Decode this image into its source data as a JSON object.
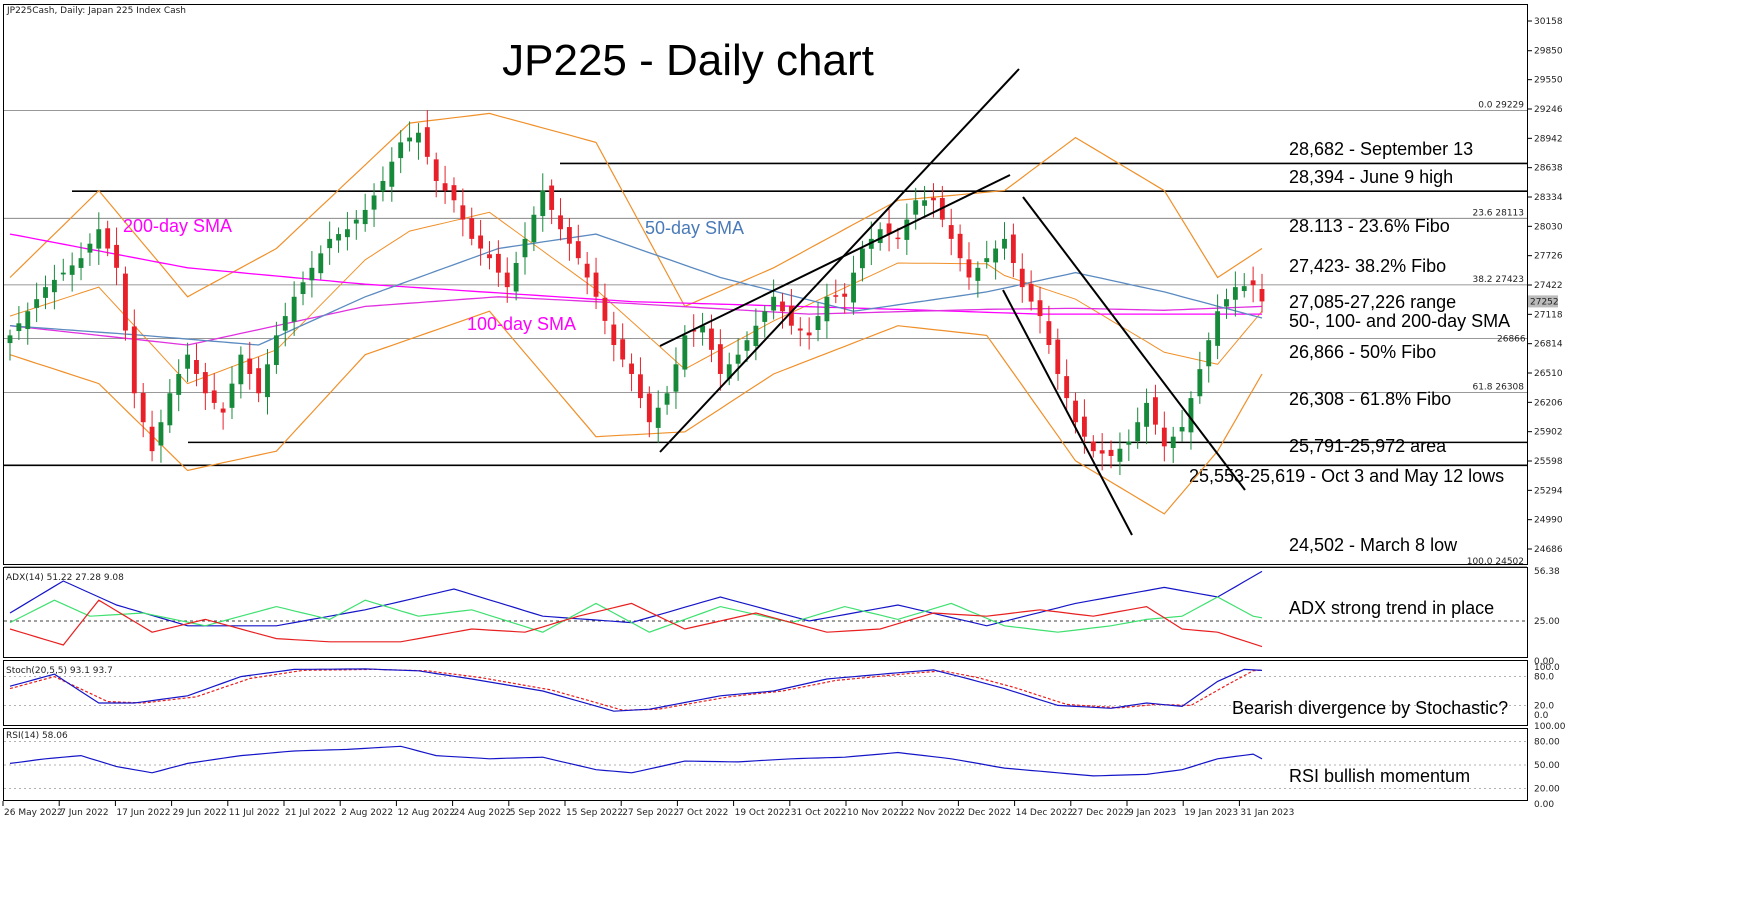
{
  "chart_data": {
    "type": "candlestick",
    "title": "JP225 - Daily chart",
    "header": "JP225Cash, Daily:  Japan 225 Index Cash",
    "y_ticks": [
      "30158",
      "29850",
      "29550",
      "29246",
      "28942",
      "28638",
      "28334",
      "28030",
      "27726",
      "27422",
      "27118",
      "26814",
      "26510",
      "26206",
      "25902",
      "25598",
      "25294",
      "24990",
      "24686"
    ],
    "ylim": [
      24450,
      30250
    ],
    "x_ticks": [
      "26 May 2022",
      "7 Jun 2022",
      "17 Jun 2022",
      "29 Jun 2022",
      "11 Jul 2022",
      "21 Jul 2022",
      "2 Aug 2022",
      "12 Aug 2022",
      "24 Aug 2022",
      "5 Sep 2022",
      "15 Sep 2022",
      "27 Sep 2022",
      "7 Oct 2022",
      "19 Oct 2022",
      "31 Oct 2022",
      "10 Nov 2022",
      "22 Nov 2022",
      "2 Dec 2022",
      "14 Dec 2022",
      "27 Dec 2022",
      "9 Jan 2023",
      "19 Jan 2023",
      "31 Jan 2023"
    ],
    "current_price": "27252",
    "hidden_price": "26866",
    "close_anchors": [
      [
        0,
        26900
      ],
      [
        4,
        27400
      ],
      [
        8,
        27700
      ],
      [
        10,
        28000
      ],
      [
        12,
        27600
      ],
      [
        14,
        26300
      ],
      [
        16,
        25700
      ],
      [
        18,
        26300
      ],
      [
        20,
        26700
      ],
      [
        22,
        26300
      ],
      [
        24,
        26100
      ],
      [
        26,
        26700
      ],
      [
        28,
        26300
      ],
      [
        30,
        26900
      ],
      [
        32,
        27300
      ],
      [
        34,
        27600
      ],
      [
        36,
        27900
      ],
      [
        38,
        28000
      ],
      [
        40,
        28200
      ],
      [
        42,
        28500
      ],
      [
        44,
        28900
      ],
      [
        46,
        29000
      ],
      [
        48,
        28500
      ],
      [
        50,
        28300
      ],
      [
        52,
        27900
      ],
      [
        54,
        27700
      ],
      [
        56,
        27400
      ],
      [
        58,
        27900
      ],
      [
        60,
        28400
      ],
      [
        62,
        28000
      ],
      [
        64,
        27700
      ],
      [
        66,
        27300
      ],
      [
        68,
        26800
      ],
      [
        70,
        26500
      ],
      [
        72,
        26000
      ],
      [
        74,
        26300
      ],
      [
        76,
        26900
      ],
      [
        78,
        27000
      ],
      [
        80,
        26500
      ],
      [
        82,
        26700
      ],
      [
        84,
        27000
      ],
      [
        86,
        27300
      ],
      [
        88,
        27000
      ],
      [
        90,
        26900
      ],
      [
        92,
        27300
      ],
      [
        94,
        27300
      ],
      [
        96,
        27800
      ],
      [
        98,
        28000
      ],
      [
        100,
        27900
      ],
      [
        102,
        28300
      ],
      [
        104,
        28300
      ],
      [
        106,
        27900
      ],
      [
        108,
        27500
      ],
      [
        110,
        27700
      ],
      [
        112,
        27900
      ],
      [
        114,
        27400
      ],
      [
        116,
        27100
      ],
      [
        118,
        26500
      ],
      [
        120,
        26000
      ],
      [
        122,
        25700
      ],
      [
        124,
        25650
      ],
      [
        126,
        25800
      ],
      [
        128,
        26200
      ],
      [
        130,
        25750
      ],
      [
        132,
        25950
      ],
      [
        134,
        26550
      ],
      [
        136,
        27150
      ],
      [
        138,
        27400
      ],
      [
        140,
        27420
      ],
      [
        141,
        27252
      ]
    ],
    "sma200": [
      [
        0,
        27950
      ],
      [
        20,
        27600
      ],
      [
        40,
        27430
      ],
      [
        70,
        27250
      ],
      [
        100,
        27170
      ],
      [
        116,
        27120
      ],
      [
        141,
        27120
      ]
    ],
    "sma100": [
      [
        0,
        27000
      ],
      [
        20,
        26800
      ],
      [
        40,
        27200
      ],
      [
        55,
        27300
      ],
      [
        70,
        27230
      ],
      [
        90,
        27120
      ],
      [
        110,
        27170
      ],
      [
        120,
        27180
      ],
      [
        130,
        27160
      ],
      [
        141,
        27200
      ]
    ],
    "sma50": [
      [
        0,
        27000
      ],
      [
        15,
        26900
      ],
      [
        28,
        26800
      ],
      [
        40,
        27300
      ],
      [
        55,
        27800
      ],
      [
        66,
        27950
      ],
      [
        80,
        27500
      ],
      [
        95,
        27150
      ],
      [
        110,
        27350
      ],
      [
        120,
        27550
      ],
      [
        130,
        27350
      ],
      [
        141,
        27080
      ]
    ],
    "bb_upper": [
      [
        0,
        27500
      ],
      [
        10,
        28400
      ],
      [
        20,
        27300
      ],
      [
        30,
        27800
      ],
      [
        45,
        29100
      ],
      [
        54,
        29200
      ],
      [
        66,
        28900
      ],
      [
        76,
        27200
      ],
      [
        86,
        27600
      ],
      [
        100,
        28300
      ],
      [
        112,
        28400
      ],
      [
        120,
        28950
      ],
      [
        130,
        28400
      ],
      [
        136,
        27500
      ],
      [
        141,
        27800
      ]
    ],
    "bb_lower": [
      [
        0,
        26700
      ],
      [
        10,
        26400
      ],
      [
        20,
        25500
      ],
      [
        30,
        25700
      ],
      [
        40,
        26700
      ],
      [
        54,
        27150
      ],
      [
        66,
        25850
      ],
      [
        76,
        25900
      ],
      [
        86,
        26500
      ],
      [
        100,
        27000
      ],
      [
        110,
        26900
      ],
      [
        120,
        25600
      ],
      [
        130,
        25050
      ],
      [
        136,
        25700
      ],
      [
        141,
        26500
      ]
    ],
    "levels": [
      {
        "value": 29229,
        "tag": "0.0 29229",
        "label": ""
      },
      {
        "value": 28682,
        "tag": "",
        "label": "28,682 - September 13"
      },
      {
        "value": 28394,
        "tag": "",
        "label": "28,394 - June 9 high"
      },
      {
        "value": 28113,
        "tag": "23.6 28113",
        "label": "28.113 - 23.6% Fibo"
      },
      {
        "value": 27423,
        "tag": "38.2 27423",
        "label": "27,423- 38.2% Fibo"
      },
      {
        "value": 26866,
        "tag": "",
        "label": "26,866 - 50% Fibo"
      },
      {
        "value": 26308,
        "tag": "61.8 26308",
        "label": "26,308 - 61.8% Fibo"
      },
      {
        "value": 25791,
        "tag": "",
        "label": "25,791-25,972 area"
      },
      {
        "value": 25553,
        "tag": "",
        "label": "25,553-25,619 - Oct 3 and May 12 lows"
      },
      {
        "value": 24502,
        "tag": "100.0 24502",
        "label": "24,502 - March 8 low"
      }
    ],
    "extra_labels": [
      "27,085-27,226 range",
      "50-, 100- and 200-day SMA"
    ],
    "sma_labels": {
      "sma200": "200-day SMA",
      "sma50": "50-day SMA",
      "sma100": "100-day SMA"
    },
    "adx": {
      "header": "ADX(14) 51.22 27.28 9.08",
      "ticks": [
        "56.38",
        "25.00",
        "0.00"
      ],
      "ylim": [
        0,
        60
      ],
      "level": 25,
      "adx": [
        [
          0,
          30
        ],
        [
          6,
          50
        ],
        [
          12,
          35
        ],
        [
          20,
          22
        ],
        [
          30,
          22
        ],
        [
          40,
          32
        ],
        [
          50,
          45
        ],
        [
          60,
          28
        ],
        [
          70,
          24
        ],
        [
          80,
          40
        ],
        [
          90,
          25
        ],
        [
          100,
          35
        ],
        [
          110,
          22
        ],
        [
          120,
          36
        ],
        [
          130,
          46
        ],
        [
          136,
          40
        ],
        [
          141,
          56
        ]
      ],
      "plus_di": [
        [
          0,
          24
        ],
        [
          5,
          38
        ],
        [
          9,
          28
        ],
        [
          15,
          30
        ],
        [
          22,
          22
        ],
        [
          30,
          34
        ],
        [
          36,
          26
        ],
        [
          40,
          38
        ],
        [
          46,
          28
        ],
        [
          52,
          32
        ],
        [
          60,
          18
        ],
        [
          66,
          36
        ],
        [
          72,
          18
        ],
        [
          80,
          34
        ],
        [
          88,
          24
        ],
        [
          94,
          34
        ],
        [
          100,
          26
        ],
        [
          106,
          36
        ],
        [
          112,
          22
        ],
        [
          118,
          18
        ],
        [
          124,
          22
        ],
        [
          128,
          26
        ],
        [
          132,
          28
        ],
        [
          136,
          40
        ],
        [
          140,
          28
        ],
        [
          141,
          27
        ]
      ],
      "minus_di": [
        [
          0,
          20
        ],
        [
          6,
          10
        ],
        [
          10,
          38
        ],
        [
          16,
          18
        ],
        [
          22,
          26
        ],
        [
          30,
          14
        ],
        [
          36,
          12
        ],
        [
          44,
          12
        ],
        [
          52,
          20
        ],
        [
          58,
          18
        ],
        [
          64,
          28
        ],
        [
          70,
          36
        ],
        [
          76,
          20
        ],
        [
          84,
          30
        ],
        [
          92,
          18
        ],
        [
          98,
          20
        ],
        [
          104,
          30
        ],
        [
          110,
          28
        ],
        [
          116,
          32
        ],
        [
          122,
          28
        ],
        [
          128,
          34
        ],
        [
          132,
          20
        ],
        [
          136,
          18
        ],
        [
          141,
          9
        ]
      ],
      "annotation": "ADX strong trend in place"
    },
    "stoch": {
      "header": "Stoch(20,5,5) 93.1 93.7",
      "ticks": [
        "100.0",
        "80.0",
        "20.0",
        "0.0"
      ],
      "ylim": [
        0,
        100
      ],
      "k": [
        [
          0,
          60
        ],
        [
          5,
          85
        ],
        [
          10,
          25
        ],
        [
          14,
          25
        ],
        [
          20,
          40
        ],
        [
          26,
          80
        ],
        [
          32,
          95
        ],
        [
          40,
          96
        ],
        [
          46,
          92
        ],
        [
          52,
          75
        ],
        [
          60,
          50
        ],
        [
          68,
          8
        ],
        [
          72,
          12
        ],
        [
          80,
          40
        ],
        [
          86,
          50
        ],
        [
          92,
          75
        ],
        [
          100,
          88
        ],
        [
          104,
          94
        ],
        [
          108,
          75
        ],
        [
          112,
          55
        ],
        [
          118,
          20
        ],
        [
          124,
          14
        ],
        [
          128,
          25
        ],
        [
          132,
          18
        ],
        [
          136,
          70
        ],
        [
          139,
          95
        ],
        [
          141,
          93
        ]
      ],
      "d": [
        [
          0,
          55
        ],
        [
          5,
          80
        ],
        [
          11,
          28
        ],
        [
          15,
          25
        ],
        [
          21,
          38
        ],
        [
          27,
          76
        ],
        [
          33,
          93
        ],
        [
          41,
          95
        ],
        [
          47,
          92
        ],
        [
          53,
          78
        ],
        [
          61,
          52
        ],
        [
          69,
          10
        ],
        [
          73,
          12
        ],
        [
          81,
          38
        ],
        [
          87,
          50
        ],
        [
          93,
          72
        ],
        [
          101,
          86
        ],
        [
          105,
          92
        ],
        [
          109,
          78
        ],
        [
          113,
          58
        ],
        [
          119,
          22
        ],
        [
          125,
          15
        ],
        [
          129,
          22
        ],
        [
          133,
          20
        ],
        [
          137,
          62
        ],
        [
          140,
          92
        ],
        [
          141,
          94
        ]
      ],
      "annotation": "Bearish divergence by Stochastic?"
    },
    "rsi": {
      "header": "RSI(14) 58.06",
      "ticks": [
        "100.00",
        "80.00",
        "50.00",
        "20.00",
        "0.00"
      ],
      "ylim": [
        0,
        100
      ],
      "values": [
        [
          0,
          52
        ],
        [
          4,
          58
        ],
        [
          8,
          62
        ],
        [
          12,
          48
        ],
        [
          16,
          40
        ],
        [
          20,
          52
        ],
        [
          26,
          62
        ],
        [
          32,
          68
        ],
        [
          38,
          70
        ],
        [
          44,
          74
        ],
        [
          48,
          62
        ],
        [
          54,
          58
        ],
        [
          60,
          60
        ],
        [
          66,
          44
        ],
        [
          70,
          40
        ],
        [
          76,
          55
        ],
        [
          82,
          54
        ],
        [
          88,
          58
        ],
        [
          94,
          60
        ],
        [
          100,
          66
        ],
        [
          106,
          58
        ],
        [
          112,
          46
        ],
        [
          118,
          40
        ],
        [
          122,
          36
        ],
        [
          128,
          38
        ],
        [
          132,
          44
        ],
        [
          136,
          58
        ],
        [
          140,
          64
        ],
        [
          141,
          58
        ]
      ],
      "annotation": "RSI bullish momentum"
    },
    "colors": {
      "up": "#168a3a",
      "down": "#e8202a",
      "bb": "#f0902a",
      "sma200": "#ff00ff",
      "sma100": "#e030e0",
      "sma50": "#5a8ac0",
      "adx": "#1515c8",
      "plus_di": "#40e070",
      "minus_di": "#e82020",
      "stoch_k": "#1515c8",
      "stoch_d": "#e82020",
      "rsi": "#1515c8"
    }
  }
}
